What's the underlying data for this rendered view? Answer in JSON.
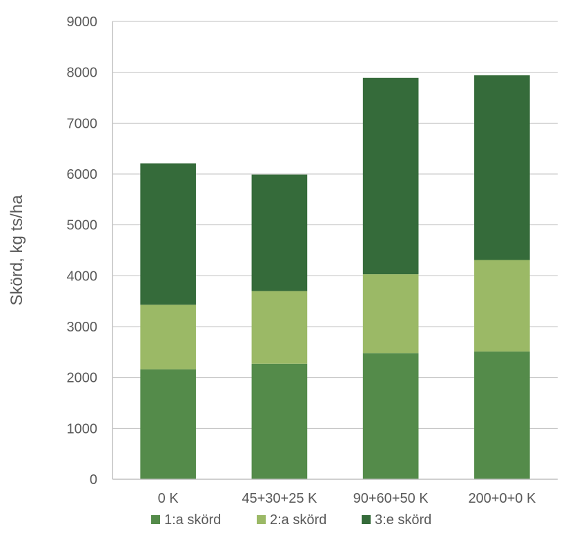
{
  "chart_data": {
    "type": "bar",
    "stacked": true,
    "categories": [
      "0 K",
      "45+30+25 K",
      "90+60+50 K",
      "200+0+0 K"
    ],
    "series": [
      {
        "name": "1:a skörd",
        "values": [
          2160,
          2270,
          2480,
          2510
        ],
        "color": "#548b4a"
      },
      {
        "name": "2:a skörd",
        "values": [
          1270,
          1430,
          1550,
          1800
        ],
        "color": "#9bb966"
      },
      {
        "name": "3:e skörd",
        "values": [
          2780,
          2290,
          3860,
          3630
        ],
        "color": "#356b3a"
      }
    ],
    "title": "",
    "xlabel": "",
    "ylabel": "Skörd, kg ts/ha",
    "ylim": [
      0,
      9000
    ],
    "yticks": [
      "0",
      "1000",
      "2000",
      "3000",
      "4000",
      "5000",
      "6000",
      "7000",
      "8000",
      "9000"
    ],
    "grid": true,
    "legend_position": "bottom"
  }
}
